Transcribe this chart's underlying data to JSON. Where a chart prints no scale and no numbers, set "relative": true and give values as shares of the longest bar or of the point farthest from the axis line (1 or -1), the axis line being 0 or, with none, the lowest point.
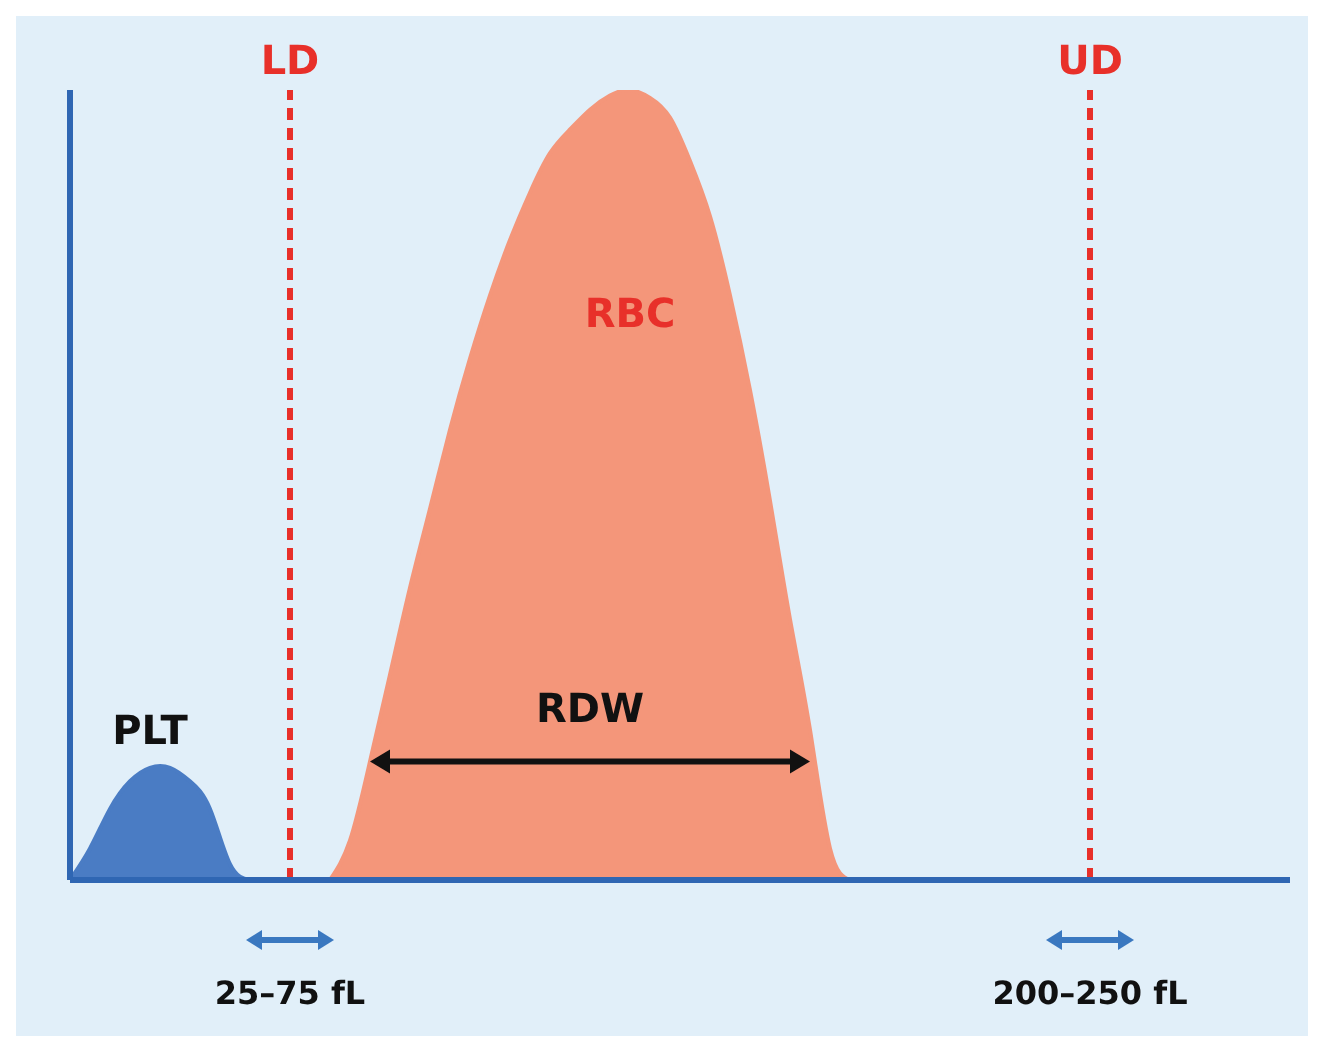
{
  "chart_data": {
    "type": "area",
    "relative": true,
    "categories": [
      null,
      null,
      null,
      null,
      null,
      null,
      null,
      null,
      null,
      null,
      null,
      null,
      null,
      null,
      null,
      null,
      null,
      null,
      null,
      null,
      null,
      null,
      null,
      null,
      null,
      null,
      null,
      null,
      null,
      null,
      null,
      null,
      null,
      null,
      null,
      null,
      null,
      null,
      null,
      null,
      null,
      null,
      null,
      null,
      null,
      null,
      null,
      null,
      null,
      null,
      null,
      null,
      null,
      null,
      null,
      null,
      null,
      null,
      null,
      null,
      null,
      null
    ],
    "series": [
      {
        "name": "PLT",
        "color": "#4a7cc4",
        "values": [
          0,
          0.04,
          0.09,
          0.125,
          0.142,
          0.142,
          0.125,
          0.09,
          0.02,
          0,
          null,
          null,
          null,
          null,
          null,
          null,
          null,
          null,
          null,
          null,
          null,
          null,
          null,
          null,
          null,
          null,
          null,
          null,
          null,
          null,
          null,
          null,
          null,
          null,
          null,
          null,
          null,
          null,
          null,
          null,
          null,
          null,
          null,
          null,
          null,
          null,
          null,
          null,
          null,
          null,
          null,
          null,
          null,
          null,
          null,
          null,
          null,
          null,
          null,
          null,
          null,
          null
        ]
      },
      {
        "name": "RBC",
        "color": "#f4967a",
        "values": [
          null,
          null,
          null,
          null,
          null,
          null,
          null,
          null,
          null,
          null,
          null,
          null,
          null,
          0,
          0.05,
          0.15,
          0.26,
          0.37,
          0.47,
          0.57,
          0.66,
          0.74,
          0.81,
          0.87,
          0.92,
          0.95,
          0.975,
          0.993,
          1,
          0.99,
          0.965,
          0.91,
          0.84,
          0.74,
          0.62,
          0.48,
          0.33,
          0.19,
          0.04,
          0,
          null,
          null,
          null,
          null,
          null,
          null,
          null,
          null,
          null,
          null,
          null,
          null,
          null,
          null,
          null,
          null,
          null,
          null,
          null,
          null,
          null,
          null
        ]
      }
    ],
    "annotations": [
      "RDW",
      "LD",
      "UD",
      "25–75 fL",
      "200–250 fL"
    ],
    "marker": "none"
  }
}
